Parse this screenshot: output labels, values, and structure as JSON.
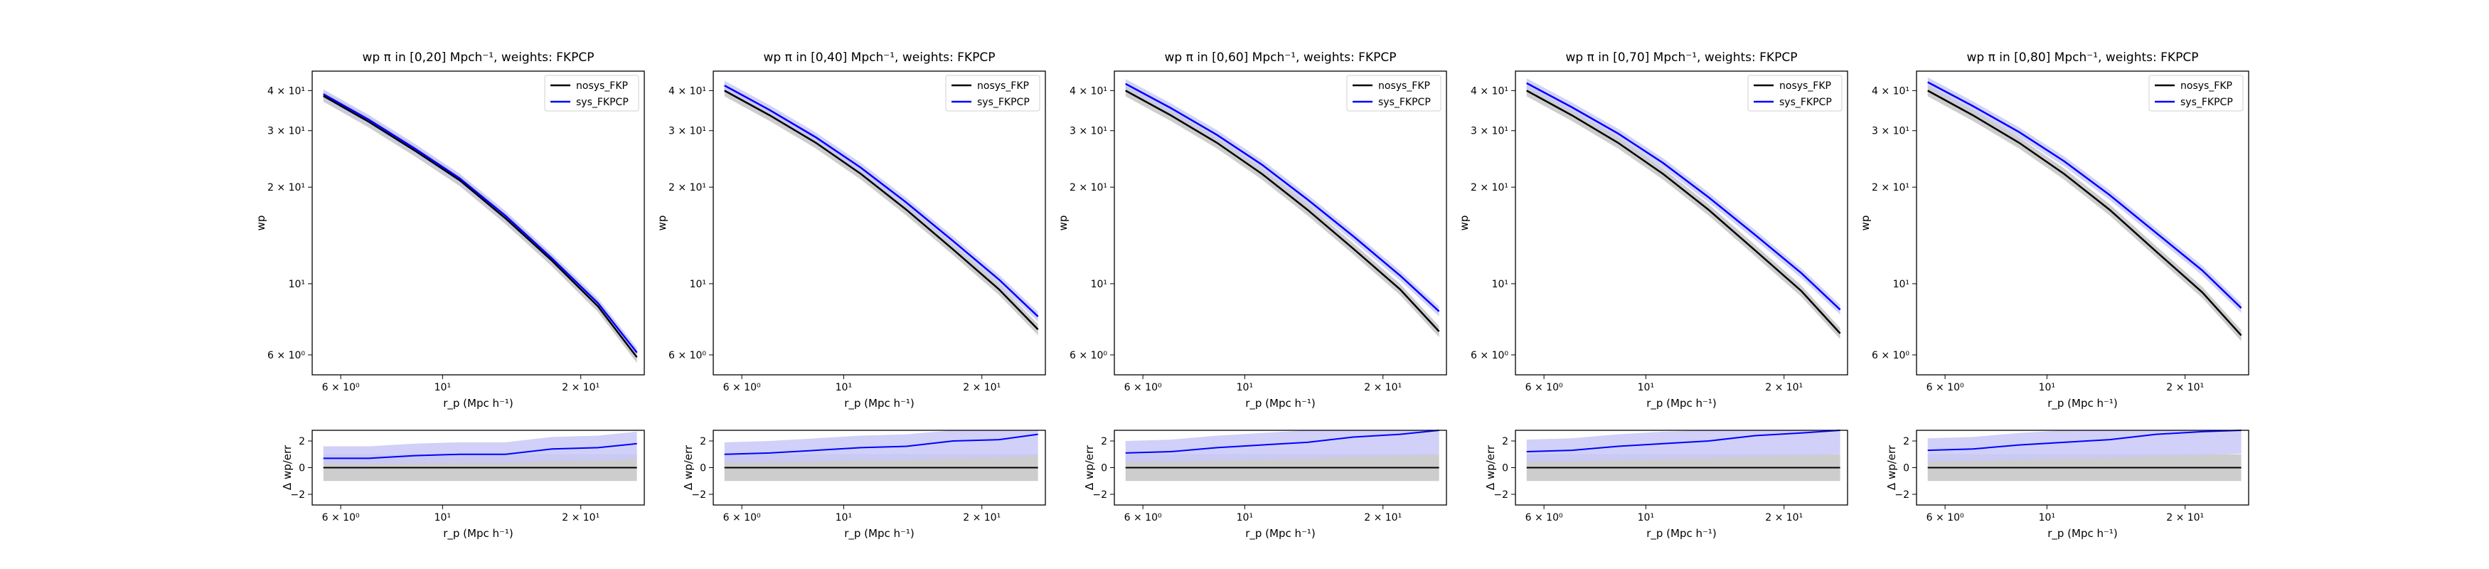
{
  "figure": {
    "background": "#ffffff"
  },
  "style": {
    "nosys_color": "#000000",
    "sys_color": "#0000ff",
    "nosys_band": "#c0c0c0",
    "sys_band": "#c8c8f8"
  },
  "chart_data": [
    {
      "type": "line",
      "title": "wp π in [0,20] Mpch⁻¹, weights: FKPCP",
      "main": {
        "xlabel": "r_p (Mpc h⁻¹)",
        "ylabel": "wp",
        "xscale": "log",
        "yscale": "log",
        "xlim": [
          5.2,
          27.5
        ],
        "ylim": [
          5.2,
          46
        ],
        "xticks": [
          {
            "value": 6,
            "label": "6 × 10⁰"
          },
          {
            "value": 10,
            "label": "10¹"
          },
          {
            "value": 20,
            "label": "2 × 10¹"
          }
        ],
        "yticks": [
          {
            "value": 6,
            "label": "6 × 10⁰"
          },
          {
            "value": 10,
            "label": "10¹"
          },
          {
            "value": 20,
            "label": "2 × 10¹"
          },
          {
            "value": 30,
            "label": "3 × 10¹"
          },
          {
            "value": 40,
            "label": "4 × 10¹"
          }
        ],
        "legend": "top-right",
        "x": [
          5.5,
          6.9,
          8.7,
          10.9,
          13.7,
          17.3,
          21.8,
          26.5
        ],
        "series": [
          {
            "name": "nosys_FKP",
            "values": [
              38.5,
              32.0,
              26.0,
              21.0,
              16.0,
              11.8,
              8.5,
              5.9
            ]
          },
          {
            "name": "sys_FKPCP",
            "values": [
              39.0,
              32.5,
              26.4,
              21.3,
              16.3,
              12.0,
              8.7,
              6.1
            ]
          }
        ]
      },
      "residual": {
        "xlabel": "r_p (Mpc h⁻¹)",
        "ylabel": "Δ wp/err",
        "ylim": [
          -2.8,
          2.8
        ],
        "yticks": [
          {
            "value": -2,
            "label": "−2"
          },
          {
            "value": 0,
            "label": "0"
          },
          {
            "value": 2,
            "label": "2"
          }
        ],
        "x": [
          5.5,
          6.9,
          8.7,
          10.9,
          13.7,
          17.3,
          21.8,
          26.5
        ],
        "series": [
          {
            "name": "nosys_FKP",
            "values": [
              0,
              0,
              0,
              0,
              0,
              0,
              0,
              0
            ]
          },
          {
            "name": "sys_FKPCP",
            "values": [
              0.7,
              0.7,
              0.9,
              1.0,
              1.0,
              1.4,
              1.5,
              1.8
            ]
          }
        ]
      }
    },
    {
      "type": "line",
      "title": "wp π in [0,40] Mpch⁻¹, weights: FKPCP",
      "main": {
        "xlabel": "r_p (Mpc h⁻¹)",
        "ylabel": "wp",
        "xscale": "log",
        "yscale": "log",
        "xlim": [
          5.2,
          27.5
        ],
        "ylim": [
          5.2,
          46
        ],
        "xticks": [
          {
            "value": 6,
            "label": "6 × 10⁰"
          },
          {
            "value": 10,
            "label": "10¹"
          },
          {
            "value": 20,
            "label": "2 × 10¹"
          }
        ],
        "yticks": [
          {
            "value": 6,
            "label": "6 × 10⁰"
          },
          {
            "value": 10,
            "label": "10¹"
          },
          {
            "value": 20,
            "label": "2 × 10¹"
          },
          {
            "value": 30,
            "label": "3 × 10¹"
          },
          {
            "value": 40,
            "label": "4 × 10¹"
          }
        ],
        "legend": "top-right",
        "x": [
          5.5,
          6.9,
          8.7,
          10.9,
          13.7,
          17.3,
          21.8,
          26.5
        ],
        "series": [
          {
            "name": "nosys_FKP",
            "values": [
              40.0,
              33.5,
              27.5,
              22.0,
              17.0,
              12.8,
              9.6,
              7.2
            ]
          },
          {
            "name": "sys_FKPCP",
            "values": [
              41.5,
              34.8,
              28.6,
              23.0,
              17.9,
              13.6,
              10.3,
              7.9
            ]
          }
        ]
      },
      "residual": {
        "xlabel": "r_p (Mpc h⁻¹)",
        "ylabel": "Δ wp/err",
        "ylim": [
          -2.8,
          2.8
        ],
        "yticks": [
          {
            "value": -2,
            "label": "−2"
          },
          {
            "value": 0,
            "label": "0"
          },
          {
            "value": 2,
            "label": "2"
          }
        ],
        "x": [
          5.5,
          6.9,
          8.7,
          10.9,
          13.7,
          17.3,
          21.8,
          26.5
        ],
        "series": [
          {
            "name": "nosys_FKP",
            "values": [
              0,
              0,
              0,
              0,
              0,
              0,
              0,
              0
            ]
          },
          {
            "name": "sys_FKPCP",
            "values": [
              1.0,
              1.1,
              1.3,
              1.5,
              1.6,
              2.0,
              2.1,
              2.5
            ]
          }
        ]
      }
    },
    {
      "type": "line",
      "title": "wp π in [0,60] Mpch⁻¹, weights: FKPCP",
      "main": {
        "xlabel": "r_p (Mpc h⁻¹)",
        "ylabel": "wp",
        "xscale": "log",
        "yscale": "log",
        "xlim": [
          5.2,
          27.5
        ],
        "ylim": [
          5.2,
          46
        ],
        "xticks": [
          {
            "value": 6,
            "label": "6 × 10⁰"
          },
          {
            "value": 10,
            "label": "10¹"
          },
          {
            "value": 20,
            "label": "2 × 10¹"
          }
        ],
        "yticks": [
          {
            "value": 6,
            "label": "6 × 10⁰"
          },
          {
            "value": 10,
            "label": "10¹"
          },
          {
            "value": 20,
            "label": "2 × 10¹"
          },
          {
            "value": 30,
            "label": "3 × 10¹"
          },
          {
            "value": 40,
            "label": "4 × 10¹"
          }
        ],
        "legend": "top-right",
        "x": [
          5.5,
          6.9,
          8.7,
          10.9,
          13.7,
          17.3,
          21.8,
          26.5
        ],
        "series": [
          {
            "name": "nosys_FKP",
            "values": [
              40.0,
              33.5,
              27.5,
              22.0,
              17.0,
              12.8,
              9.6,
              7.1
            ]
          },
          {
            "name": "sys_FKPCP",
            "values": [
              42.0,
              35.3,
              29.1,
              23.5,
              18.3,
              14.0,
              10.6,
              8.2
            ]
          }
        ]
      },
      "residual": {
        "xlabel": "r_p (Mpc h⁻¹)",
        "ylabel": "Δ wp/err",
        "ylim": [
          -2.8,
          2.8
        ],
        "yticks": [
          {
            "value": -2,
            "label": "−2"
          },
          {
            "value": 0,
            "label": "0"
          },
          {
            "value": 2,
            "label": "2"
          }
        ],
        "x": [
          5.5,
          6.9,
          8.7,
          10.9,
          13.7,
          17.3,
          21.8,
          26.5
        ],
        "series": [
          {
            "name": "nosys_FKP",
            "values": [
              0,
              0,
              0,
              0,
              0,
              0,
              0,
              0
            ]
          },
          {
            "name": "sys_FKPCP",
            "values": [
              1.1,
              1.2,
              1.5,
              1.7,
              1.9,
              2.3,
              2.5,
              2.8
            ]
          }
        ]
      }
    },
    {
      "type": "line",
      "title": "wp π in [0,70] Mpch⁻¹, weights: FKPCP",
      "main": {
        "xlabel": "r_p (Mpc h⁻¹)",
        "ylabel": "wp",
        "xscale": "log",
        "yscale": "log",
        "xlim": [
          5.2,
          27.5
        ],
        "ylim": [
          5.2,
          46
        ],
        "xticks": [
          {
            "value": 6,
            "label": "6 × 10⁰"
          },
          {
            "value": 10,
            "label": "10¹"
          },
          {
            "value": 20,
            "label": "2 × 10¹"
          }
        ],
        "yticks": [
          {
            "value": 6,
            "label": "6 × 10⁰"
          },
          {
            "value": 10,
            "label": "10¹"
          },
          {
            "value": 20,
            "label": "2 × 10¹"
          },
          {
            "value": 30,
            "label": "3 × 10¹"
          },
          {
            "value": 40,
            "label": "4 × 10¹"
          }
        ],
        "legend": "top-right",
        "x": [
          5.5,
          6.9,
          8.7,
          10.9,
          13.7,
          17.3,
          21.8,
          26.5
        ],
        "series": [
          {
            "name": "nosys_FKP",
            "values": [
              40.0,
              33.5,
              27.5,
              22.0,
              17.0,
              12.7,
              9.5,
              7.0
            ]
          },
          {
            "name": "sys_FKPCP",
            "values": [
              42.2,
              35.5,
              29.4,
              23.8,
              18.6,
              14.2,
              10.8,
              8.3
            ]
          }
        ]
      },
      "residual": {
        "xlabel": "r_p (Mpc h⁻¹)",
        "ylabel": "Δ wp/err",
        "ylim": [
          -2.8,
          2.8
        ],
        "yticks": [
          {
            "value": -2,
            "label": "−2"
          },
          {
            "value": 0,
            "label": "0"
          },
          {
            "value": 2,
            "label": "2"
          }
        ],
        "x": [
          5.5,
          6.9,
          8.7,
          10.9,
          13.7,
          17.3,
          21.8,
          26.5
        ],
        "series": [
          {
            "name": "nosys_FKP",
            "values": [
              0,
              0,
              0,
              0,
              0,
              0,
              0,
              0
            ]
          },
          {
            "name": "sys_FKPCP",
            "values": [
              1.2,
              1.3,
              1.6,
              1.8,
              2.0,
              2.4,
              2.6,
              2.9
            ]
          }
        ]
      }
    },
    {
      "type": "line",
      "title": "wp π in [0,80] Mpch⁻¹, weights: FKPCP",
      "main": {
        "xlabel": "r_p (Mpc h⁻¹)",
        "ylabel": "wp",
        "xscale": "log",
        "yscale": "log",
        "xlim": [
          5.2,
          27.5
        ],
        "ylim": [
          5.2,
          46
        ],
        "xticks": [
          {
            "value": 6,
            "label": "6 × 10⁰"
          },
          {
            "value": 10,
            "label": "10¹"
          },
          {
            "value": 20,
            "label": "2 × 10¹"
          }
        ],
        "yticks": [
          {
            "value": 6,
            "label": "6 × 10⁰"
          },
          {
            "value": 10,
            "label": "10¹"
          },
          {
            "value": 20,
            "label": "2 × 10¹"
          },
          {
            "value": 30,
            "label": "3 × 10¹"
          },
          {
            "value": 40,
            "label": "4 × 10¹"
          }
        ],
        "legend": "top-right",
        "x": [
          5.5,
          6.9,
          8.7,
          10.9,
          13.7,
          17.3,
          21.8,
          26.5
        ],
        "series": [
          {
            "name": "nosys_FKP",
            "values": [
              40.0,
              33.5,
              27.5,
              22.0,
              17.0,
              12.6,
              9.4,
              6.9
            ]
          },
          {
            "name": "sys_FKPCP",
            "values": [
              42.5,
              35.8,
              29.7,
              24.1,
              18.9,
              14.4,
              11.0,
              8.4
            ]
          }
        ]
      },
      "residual": {
        "xlabel": "r_p (Mpc h⁻¹)",
        "ylabel": "Δ wp/err",
        "ylim": [
          -2.8,
          2.8
        ],
        "yticks": [
          {
            "value": -2,
            "label": "−2"
          },
          {
            "value": 0,
            "label": "0"
          },
          {
            "value": 2,
            "label": "2"
          }
        ],
        "x": [
          5.5,
          6.9,
          8.7,
          10.9,
          13.7,
          17.3,
          21.8,
          26.5
        ],
        "series": [
          {
            "name": "nosys_FKP",
            "values": [
              0,
              0,
              0,
              0,
              0,
              0,
              0,
              0
            ]
          },
          {
            "name": "sys_FKPCP",
            "values": [
              1.3,
              1.4,
              1.7,
              1.9,
              2.1,
              2.5,
              2.7,
              3.0
            ]
          }
        ]
      }
    }
  ]
}
